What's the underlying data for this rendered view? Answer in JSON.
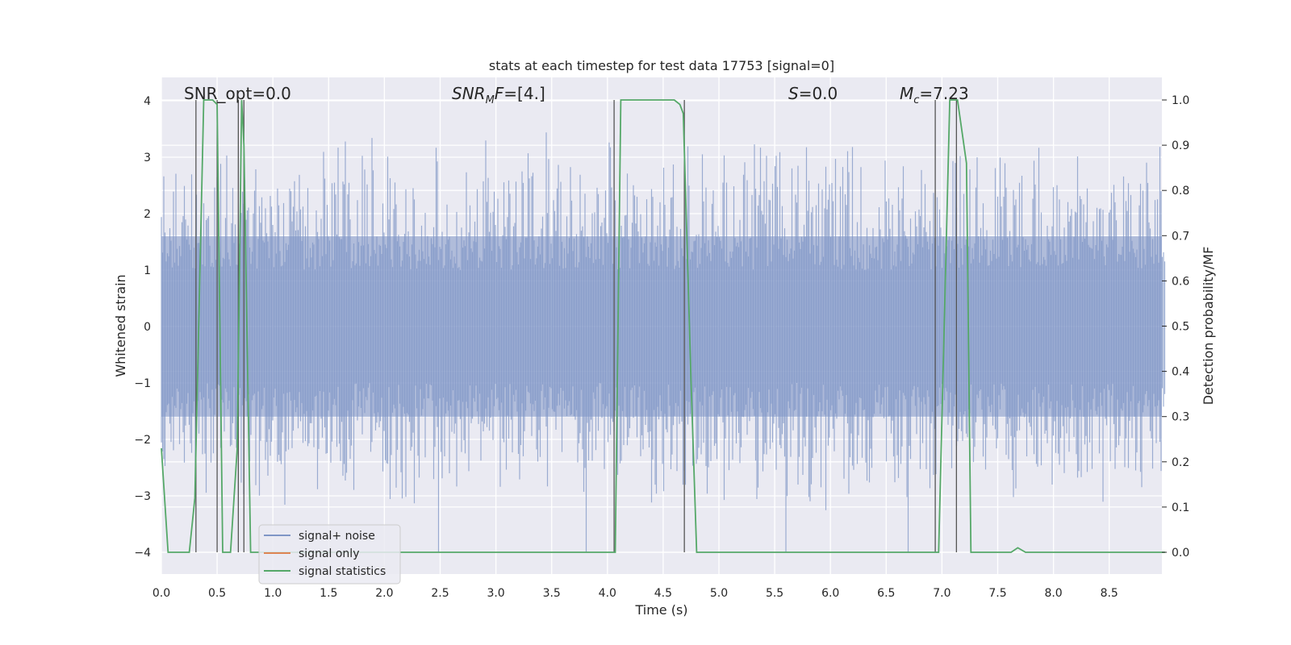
{
  "chart_data": {
    "type": "line",
    "title": "stats at each timestep for test data 17753 [signal=0]",
    "xlabel": "Time (s)",
    "ylabel": "Whitened strain",
    "ylabel_right": "Detection probability/MF",
    "xlim": [
      0.0,
      9.0
    ],
    "ylim": [
      -4.4,
      4.4
    ],
    "ylim_right": [
      -0.05,
      1.05
    ],
    "x_ticks": [
      "0.0",
      "0.5",
      "1.0",
      "1.5",
      "2.0",
      "2.5",
      "3.0",
      "3.5",
      "4.0",
      "4.5",
      "5.0",
      "5.5",
      "6.0",
      "6.5",
      "7.0",
      "7.5",
      "8.0",
      "8.5"
    ],
    "y_ticks": [
      "4",
      "3",
      "2",
      "1",
      "0",
      "−1",
      "−2",
      "−3",
      "−4"
    ],
    "y_ticks_right": [
      "1.0",
      "0.9",
      "0.8",
      "0.7",
      "0.6",
      "0.5",
      "0.4",
      "0.3",
      "0.2",
      "0.1",
      "0.0"
    ],
    "annotations": {
      "snr_opt": "SNR_opt=0.0",
      "snr_mf_base": "SNR",
      "snr_mf_sub": "M",
      "snr_mf_rest_it": "F",
      "snr_mf_value": "=[4.]",
      "s_it": "S",
      "s_value": "=0.0",
      "mc_it": "M",
      "mc_sub": "c",
      "mc_value": "=7.23"
    },
    "legend": {
      "position": "lower-left",
      "entries": [
        "signal+ noise",
        "signal only",
        "signal statistics"
      ]
    },
    "colors": {
      "noise": "#7f96c6",
      "signal": "#dd8452",
      "stats": "#55a868",
      "marker": "#555555",
      "background": "#eaeaf2",
      "grid": "#ffffff"
    },
    "series": [
      {
        "name": "signal+ noise",
        "kind": "noise-envelope",
        "x_range": [
          0.0,
          9.0
        ],
        "typical_amplitude": 1.6,
        "max_amplitude": 3.5,
        "min_amplitude": -4.0
      },
      {
        "name": "signal only",
        "kind": "line",
        "x": [],
        "y": []
      },
      {
        "name": "signal statistics",
        "kind": "line",
        "axis": "right",
        "x": [
          0.0,
          0.06,
          0.25,
          0.3,
          0.38,
          0.46,
          0.5,
          0.55,
          0.62,
          0.68,
          0.72,
          0.74,
          0.8,
          1.0,
          1.1,
          1.3,
          2.0,
          2.9,
          3.0,
          3.5,
          4.0,
          4.07,
          4.12,
          4.45,
          4.6,
          4.65,
          4.68,
          4.75,
          4.8,
          4.82,
          4.9,
          5.5,
          6.0,
          6.5,
          6.94,
          6.97,
          7.07,
          7.12,
          7.14,
          7.22,
          7.26,
          7.4,
          7.5,
          7.62,
          7.68,
          7.75,
          8.0,
          9.0
        ],
        "y": [
          0.23,
          0.0,
          0.0,
          0.12,
          1.0,
          1.0,
          0.99,
          0.0,
          0.0,
          0.23,
          1.0,
          0.9,
          0.0,
          0.0,
          0.0,
          0.0,
          0.0,
          0.0,
          0.0,
          0.0,
          0.0,
          0.0,
          1.0,
          1.0,
          1.0,
          0.99,
          0.97,
          0.38,
          0.0,
          0.0,
          0.0,
          0.0,
          0.0,
          0.0,
          0.0,
          0.0,
          1.0,
          1.0,
          1.0,
          0.86,
          0.0,
          0.0,
          0.0,
          0.0,
          0.01,
          0.0,
          0.0,
          0.0
        ]
      }
    ],
    "marker_lines_x": [
      0.31,
      0.5,
      0.69,
      0.74,
      4.06,
      4.69,
      6.94,
      7.13
    ]
  }
}
